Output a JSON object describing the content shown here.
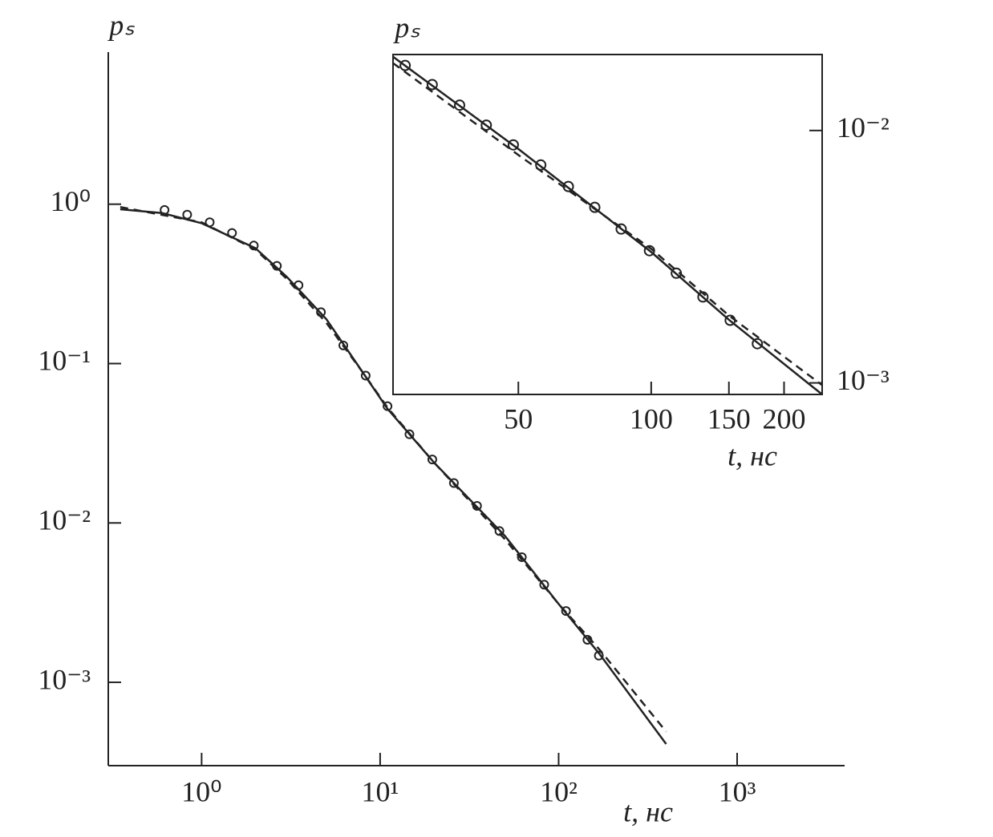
{
  "chart_data": [
    {
      "type": "line",
      "xlog": true,
      "ylog": true,
      "xlabel": "t, нс",
      "ylabel": "pₛ",
      "xlim": [
        0.3,
        4000
      ],
      "ylim": [
        0.0003,
        9
      ],
      "xticks": [
        {
          "value": 1,
          "label": "10⁰"
        },
        {
          "value": 10,
          "label": "10¹"
        },
        {
          "value": 100,
          "label": "10²"
        },
        {
          "value": 1000,
          "label": "10³"
        }
      ],
      "yticks": [
        {
          "value": 1,
          "label": "10⁰"
        },
        {
          "value": 0.1,
          "label": "10⁻¹"
        },
        {
          "value": 0.01,
          "label": "10⁻²"
        },
        {
          "value": 0.001,
          "label": "10⁻³"
        }
      ],
      "series": [
        {
          "style": "markers",
          "color": "#222222",
          "x": [
            0.62,
            0.83,
            1.11,
            1.48,
            1.96,
            2.64,
            3.49,
            4.66,
            6.22,
            8.3,
            11.0,
            14.6,
            19.6,
            25.9,
            34.9,
            46.6,
            62.2,
            83.0,
            110,
            145,
            168
          ],
          "values": [
            0.92,
            0.86,
            0.77,
            0.66,
            0.55,
            0.41,
            0.31,
            0.21,
            0.13,
            0.084,
            0.054,
            0.036,
            0.025,
            0.0178,
            0.0128,
            0.0089,
            0.0061,
            0.0041,
            0.0028,
            0.00185,
            0.00147
          ]
        },
        {
          "style": "solid",
          "color": "#222222",
          "x": [
            0.35,
            0.6,
            1,
            2,
            3,
            5,
            8,
            11,
            20,
            50,
            100,
            170,
            400
          ],
          "values": [
            0.93,
            0.88,
            0.76,
            0.53,
            0.35,
            0.19,
            0.088,
            0.052,
            0.024,
            0.0083,
            0.0031,
            0.0015,
            0.00041
          ]
        },
        {
          "style": "dashed",
          "color": "#222222",
          "x": [
            0.35,
            1,
            2,
            3,
            5,
            8,
            11,
            20,
            50,
            100,
            170,
            400
          ],
          "values": [
            0.96,
            0.77,
            0.52,
            0.34,
            0.18,
            0.088,
            0.053,
            0.024,
            0.0079,
            0.0031,
            0.0016,
            0.00049
          ]
        }
      ]
    },
    {
      "type": "line",
      "xlog": true,
      "ylog": true,
      "xlabel": "t, нс",
      "ylabel": "pₛ",
      "xlim": [
        26,
        244
      ],
      "ylim": [
        0.0009,
        0.02
      ],
      "xticks": [
        50,
        100,
        150,
        200
      ],
      "yticks": [
        {
          "value": 0.01,
          "label": "10⁻²"
        },
        {
          "value": 0.001,
          "label": "10⁻³"
        }
      ],
      "series": [
        {
          "style": "markers",
          "color": "#222222",
          "x": [
            27.7,
            31.9,
            36.8,
            42.3,
            48.7,
            56.2,
            64.9,
            74.5,
            85.5,
            99.1,
            114,
            131,
            151,
            174
          ],
          "values": [
            0.0181,
            0.0152,
            0.0126,
            0.0105,
            0.00877,
            0.0073,
            0.006,
            0.00496,
            0.00407,
            0.00334,
            0.00272,
            0.00219,
            0.00177,
            0.00143
          ]
        },
        {
          "style": "solid",
          "color": "#222222",
          "x": [
            26,
            50,
            100,
            150,
            244
          ],
          "values": [
            0.0196,
            0.00845,
            0.0033,
            0.00178,
            0.0009
          ]
        },
        {
          "style": "dashed",
          "color": "#222222",
          "x": [
            26,
            50,
            100,
            150,
            244
          ],
          "values": [
            0.0185,
            0.008,
            0.0034,
            0.00185,
            0.00098
          ]
        }
      ]
    }
  ]
}
